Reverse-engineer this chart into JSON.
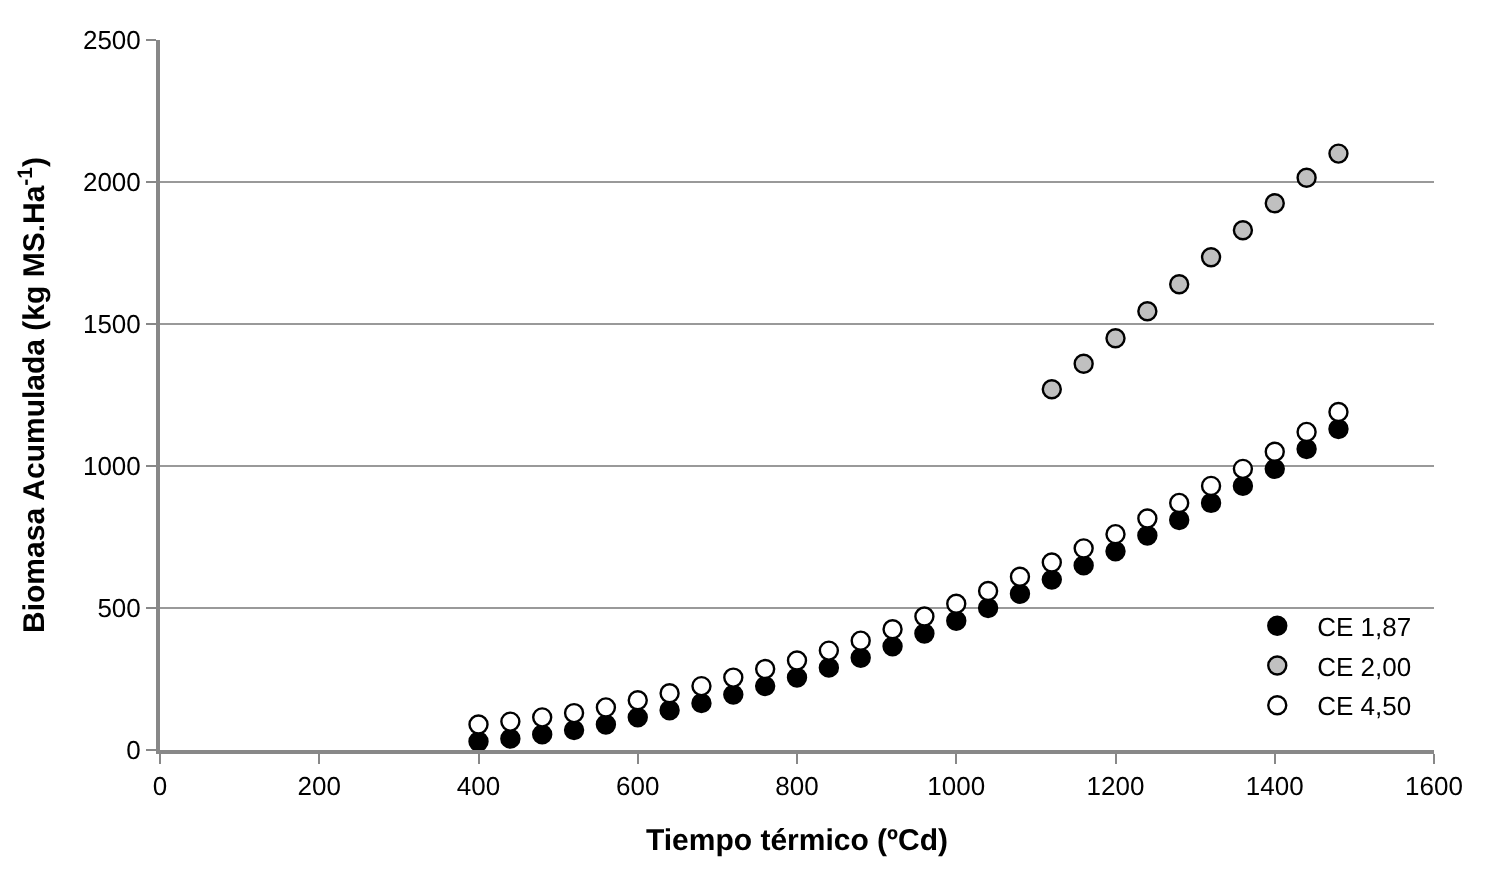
{
  "chart_data": {
    "type": "scatter",
    "xlabel": "Tiempo térmico (ºCd)",
    "ylabel": "Biomasa Acumulada (kg MS.Ha$^{-1}$)",
    "x": [
      400,
      440,
      480,
      520,
      560,
      600,
      640,
      680,
      720,
      760,
      800,
      840,
      880,
      920,
      960,
      1000,
      1040,
      1080,
      1120,
      1160,
      1200,
      1240,
      1280,
      1320,
      1360,
      1400,
      1440,
      1480
    ],
    "series": [
      {
        "name": "CE 1,87",
        "color": "#000000",
        "values": [
          30,
          40,
          55,
          70,
          90,
          115,
          140,
          165,
          195,
          225,
          255,
          290,
          325,
          365,
          410,
          455,
          500,
          550,
          600,
          650,
          700,
          755,
          810,
          870,
          930,
          990,
          1060,
          1130
        ]
      },
      {
        "name": "CE 2,00",
        "color": "#c0c0c0",
        "values": [
          null,
          null,
          null,
          null,
          null,
          null,
          null,
          null,
          null,
          null,
          null,
          null,
          null,
          null,
          null,
          null,
          null,
          null,
          1270,
          1360,
          1450,
          1545,
          1640,
          1735,
          1830,
          1925,
          2015,
          2100
        ]
      },
      {
        "name": "CE 4,50",
        "color": "#ffffff",
        "values": [
          90,
          100,
          115,
          130,
          150,
          175,
          200,
          225,
          255,
          285,
          315,
          350,
          385,
          425,
          470,
          515,
          560,
          610,
          660,
          710,
          760,
          815,
          870,
          930,
          990,
          1050,
          1120,
          1190
        ]
      }
    ],
    "xlim": [
      0,
      1600
    ],
    "xticks": [
      0,
      200,
      400,
      600,
      800,
      1000,
      1200,
      1400,
      1600
    ],
    "ylim": [
      0,
      2500
    ],
    "yticks": [
      0,
      500,
      1000,
      1500,
      2000,
      2500
    ],
    "grid": "y",
    "legend": "bottom right",
    "marker": "circle"
  }
}
